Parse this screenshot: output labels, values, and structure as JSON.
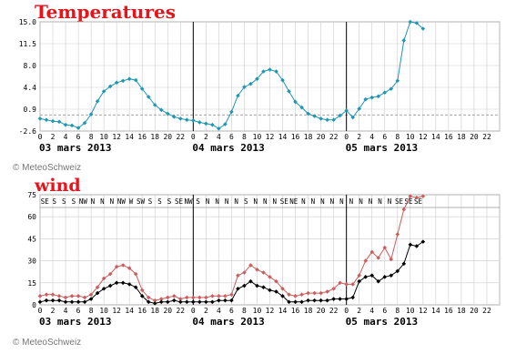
{
  "copyright": "© MeteoSchweiz",
  "x_hour_labels": [
    "0",
    "2",
    "4",
    "6",
    "8",
    "10",
    "12",
    "14",
    "16",
    "18",
    "20",
    "22"
  ],
  "x_dates": [
    "03 mars 2013",
    "04 mars 2013",
    "05 mars 2013"
  ],
  "colors": {
    "temperature": "#1e96b4",
    "wind_gust": "#cd5c5c",
    "wind_mean": "#000000",
    "grid": "#cccccc",
    "title": "#e8141b"
  },
  "chart_data": [
    {
      "type": "line",
      "title": "Temperatures",
      "xlabel": "",
      "ylabel": "",
      "x_unit": "hours from 03 mars 2013 00:00",
      "xlim": [
        0,
        72
      ],
      "ylim": [
        -2.6,
        15.0
      ],
      "yticks": [
        "15.0",
        "11.5",
        "8.0",
        "4.4",
        "0.9",
        "-2.6"
      ],
      "reference_line": 0.0,
      "grid": true,
      "series": [
        {
          "name": "",
          "x": [
            0,
            1,
            2,
            3,
            4,
            5,
            6,
            7,
            8,
            9,
            10,
            11,
            12,
            13,
            14,
            15,
            16,
            17,
            18,
            19,
            20,
            21,
            22,
            23,
            24,
            25,
            26,
            27,
            28,
            29,
            30,
            31,
            32,
            33,
            34,
            35,
            36,
            37,
            38,
            39,
            40,
            41,
            42,
            43,
            44,
            45,
            46,
            47,
            48,
            49,
            50,
            51,
            52,
            53,
            54,
            55,
            56,
            57,
            58,
            59,
            60,
            61,
            62
          ],
          "values": [
            -0.6,
            -0.8,
            -1.0,
            -1.1,
            -1.6,
            -1.7,
            -2.1,
            -1.3,
            0.1,
            2.2,
            3.8,
            4.6,
            5.2,
            5.5,
            5.8,
            5.6,
            4.2,
            2.9,
            1.6,
            0.8,
            0.2,
            -0.3,
            -0.6,
            -0.8,
            -0.9,
            -1.2,
            -1.4,
            -1.6,
            -2.2,
            -1.5,
            0.5,
            3.1,
            4.5,
            5.0,
            5.8,
            7.0,
            7.3,
            7.0,
            5.6,
            3.8,
            2.1,
            1.2,
            0.2,
            -0.2,
            -0.6,
            -0.8,
            -0.8,
            -0.1,
            0.7,
            -0.4,
            1.0,
            2.5,
            2.8,
            3.0,
            3.6,
            4.2,
            5.5,
            12.0,
            15.0,
            14.8,
            13.9,
            null,
            null
          ]
        }
      ]
    },
    {
      "type": "line",
      "title": "wind",
      "xlabel": "",
      "ylabel": "",
      "x_unit": "hours from 03 mars 2013 00:00",
      "xlim": [
        0,
        72
      ],
      "ylim": [
        0,
        75
      ],
      "yticks": [
        "75",
        "60",
        "45",
        "30",
        "15",
        "0"
      ],
      "grid": true,
      "directions": [
        "SE",
        "S",
        "S",
        "S",
        "NW",
        "N",
        "N",
        "N",
        "NW",
        "W",
        "SW",
        "S",
        "S",
        "S",
        "SE",
        "NW",
        "S",
        "N",
        "N",
        "N",
        "N",
        "S",
        "N",
        "N",
        "N",
        "SE",
        "NE",
        "N",
        "N",
        "N",
        "N",
        "N",
        "N",
        "N",
        "N",
        "N",
        "N",
        "SE",
        "SE",
        "SE"
      ],
      "series": [
        {
          "name": "",
          "x": [
            0,
            1,
            2,
            3,
            4,
            5,
            6,
            7,
            8,
            9,
            10,
            11,
            12,
            13,
            14,
            15,
            16,
            17,
            18,
            19,
            20,
            21,
            22,
            23,
            24,
            25,
            26,
            27,
            28,
            29,
            30,
            31,
            32,
            33,
            34,
            35,
            36,
            37,
            38,
            39,
            40,
            41,
            42,
            43,
            44,
            45,
            46,
            47,
            48,
            49,
            50,
            51,
            52,
            53,
            54,
            55,
            56,
            57,
            58,
            59,
            60,
            61,
            62
          ],
          "values": [
            6,
            7,
            7,
            6,
            5,
            6,
            6,
            5,
            7,
            12,
            18,
            21,
            26,
            27,
            25,
            21,
            10,
            5,
            3,
            4,
            5,
            6,
            4,
            5,
            5,
            5,
            5,
            6,
            6,
            6,
            7,
            20,
            22,
            27,
            24,
            22,
            19,
            16,
            11,
            7,
            6,
            7,
            8,
            8,
            8,
            9,
            11,
            15,
            14,
            14,
            20,
            30,
            36,
            32,
            39,
            31,
            48,
            65,
            74,
            73,
            74,
            null,
            null
          ]
        },
        {
          "name": "",
          "x": [
            0,
            1,
            2,
            3,
            4,
            5,
            6,
            7,
            8,
            9,
            10,
            11,
            12,
            13,
            14,
            15,
            16,
            17,
            18,
            19,
            20,
            21,
            22,
            23,
            24,
            25,
            26,
            27,
            28,
            29,
            30,
            31,
            32,
            33,
            34,
            35,
            36,
            37,
            38,
            39,
            40,
            41,
            42,
            43,
            44,
            45,
            46,
            47,
            48,
            49,
            50,
            51,
            52,
            53,
            54,
            55,
            56,
            57,
            58,
            59,
            60,
            61,
            62
          ],
          "values": [
            2,
            3,
            3,
            3,
            2,
            2,
            2,
            2,
            4,
            8,
            11,
            13,
            15,
            15,
            14,
            12,
            6,
            2,
            1,
            2,
            2,
            3,
            2,
            2,
            2,
            2,
            2,
            2,
            3,
            3,
            3,
            11,
            13,
            16,
            13,
            12,
            10,
            9,
            6,
            2,
            2,
            2,
            3,
            3,
            3,
            3,
            4,
            4,
            4,
            5,
            16,
            19,
            20,
            16,
            19,
            20,
            23,
            28,
            41,
            40,
            43,
            null,
            null
          ]
        }
      ]
    }
  ]
}
